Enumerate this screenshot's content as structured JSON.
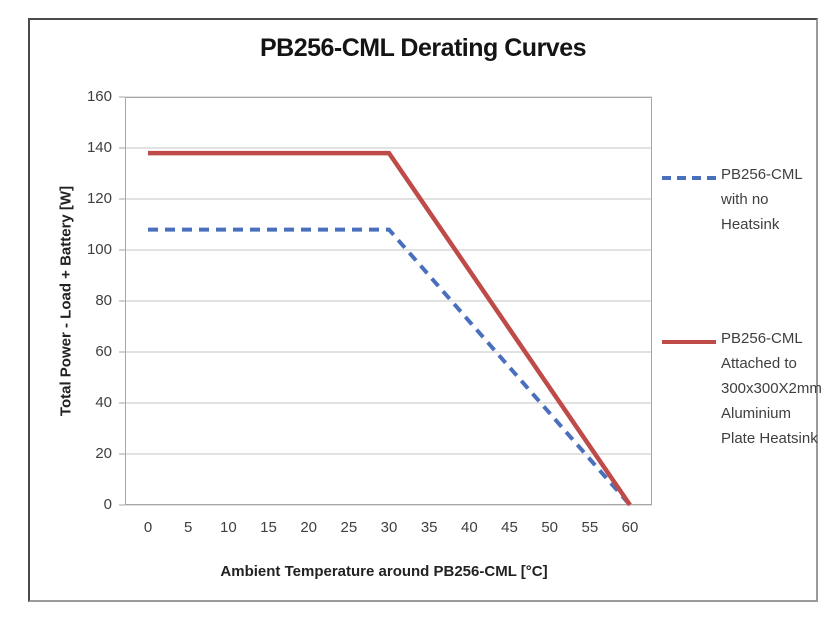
{
  "window": {
    "background": "#ffffff",
    "frame_border_dark": "#4a4a4a",
    "frame_border_light": "#9a9a9a"
  },
  "chart_data": {
    "type": "line",
    "title": "PB256-CML Derating Curves",
    "xlabel": "Ambient Temperature around PB256-CML [°C]",
    "ylabel": "Total Power - Load + Battery [W]",
    "xlim": [
      0,
      60
    ],
    "ylim": [
      0,
      160
    ],
    "x_ticks": [
      0,
      5,
      10,
      15,
      20,
      25,
      30,
      35,
      40,
      45,
      50,
      55,
      60
    ],
    "y_ticks": [
      0,
      20,
      40,
      60,
      80,
      100,
      120,
      140,
      160
    ],
    "grid": "horizontal-only",
    "gridline_color": "#c6c6c6",
    "axis_border_color": "#a6a6a6",
    "legend_position": "right",
    "series": [
      {
        "name": "PB256-CML with no Heatsink",
        "legend_lines": "PB256-CML\nwith no\nHeatsink",
        "color": "#4A6FBD",
        "style": "dashed",
        "stroke_width": 4,
        "points": [
          [
            0,
            108
          ],
          [
            30,
            108
          ],
          [
            60,
            0
          ]
        ]
      },
      {
        "name": "PB256-CML Attached to 300x300X2mm Aluminium Plate Heatsink",
        "legend_lines": "PB256-CML\nAttached to\n300x300X2mm\nAluminium\nPlate Heatsink",
        "color": "#BE4B48",
        "style": "solid",
        "stroke_width": 4.5,
        "points": [
          [
            0,
            138
          ],
          [
            30,
            138
          ],
          [
            60,
            0
          ]
        ]
      }
    ]
  }
}
